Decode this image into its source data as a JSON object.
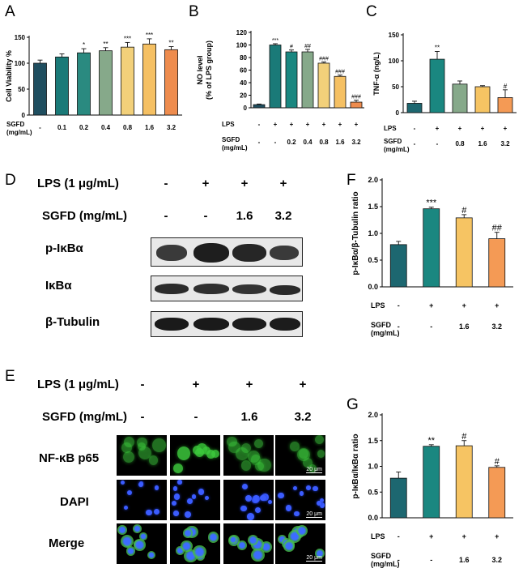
{
  "panels": {
    "A": "A",
    "B": "B",
    "C": "C",
    "D": "D",
    "E": "E",
    "F": "F",
    "G": "G"
  },
  "colors": {
    "c0": "#1f4e5f",
    "c1": "#1a7a78",
    "c2": "#7a9e7e",
    "c3": "#f2d07a",
    "c4": "#f5c063",
    "c5": "#ee8c4e",
    "teal": "#1a8780",
    "dkteal": "#1d6770",
    "yellow": "#f6c463",
    "orange": "#f49a55",
    "sage": "#86a98a"
  },
  "chart_data": [
    {
      "id": "A",
      "type": "bar",
      "ylabel": "Cell Viability %",
      "ylim": [
        0,
        150
      ],
      "yticks": [
        0,
        50,
        100,
        150
      ],
      "row_labels": [
        "SGFD",
        "(mg/mL)"
      ],
      "rows": [
        [
          "-",
          "0.1",
          "0.2",
          "0.4",
          "0.8",
          "1.6",
          "3.2"
        ]
      ],
      "values": [
        100,
        112,
        120,
        124,
        131,
        137,
        126
      ],
      "errors": [
        6,
        6,
        8,
        6,
        9,
        10,
        6
      ],
      "sig": [
        "",
        "",
        "*",
        "**",
        "***",
        "***",
        "**"
      ],
      "bar_colors": [
        "#1f4e5f",
        "#1a7a78",
        "#2a8a80",
        "#86a98a",
        "#f2d07a",
        "#f5c063",
        "#ee8c4e"
      ]
    },
    {
      "id": "B",
      "type": "bar",
      "ylabel_lines": [
        "NO level",
        "(% of LPS group)"
      ],
      "ylim": [
        0,
        120
      ],
      "yticks": [
        0,
        20,
        40,
        60,
        80,
        100,
        120
      ],
      "row_labels": [
        "LPS",
        "SGFD",
        "(mg/mL)"
      ],
      "rows": [
        [
          "-",
          "+",
          "+",
          "+",
          "+",
          "+",
          "+"
        ],
        [
          "-",
          "-",
          "0.2",
          "0.4",
          "0.8",
          "1.6",
          "3.2"
        ]
      ],
      "values": [
        5,
        100,
        89,
        89,
        71,
        50,
        9
      ],
      "errors": [
        1,
        2,
        3,
        4,
        2,
        2,
        3
      ],
      "sig": [
        "",
        "***",
        "#",
        "##",
        "###",
        "###",
        "###"
      ],
      "bar_colors": [
        "#1f4e5f",
        "#1a7a78",
        "#1a8780",
        "#86a98a",
        "#f2d07a",
        "#f5c063",
        "#ee8c4e"
      ]
    },
    {
      "id": "C",
      "type": "bar",
      "ylabel": "TNF-α (ng/L)",
      "ylim": [
        0,
        150
      ],
      "yticks": [
        0,
        50,
        100,
        150
      ],
      "row_labels": [
        "LPS",
        "SGFD",
        "(mg/mL)"
      ],
      "rows": [
        [
          "-",
          "+",
          "+",
          "+",
          "+"
        ],
        [
          "-",
          "-",
          "0.8",
          "1.6",
          "3.2"
        ]
      ],
      "values": [
        18,
        103,
        55,
        50,
        29
      ],
      "errors": [
        4,
        15,
        6,
        2,
        15
      ],
      "sig": [
        "",
        "**",
        "",
        "",
        "#"
      ],
      "bar_colors": [
        "#1d6770",
        "#1a8780",
        "#86a98a",
        "#f6c463",
        "#f49a55"
      ]
    },
    {
      "id": "F",
      "type": "bar",
      "ylabel": "p-IκBα/β-Tubulin ratio",
      "ylim": [
        0,
        2.0
      ],
      "yticks": [
        "0.0",
        "0.5",
        "1.0",
        "1.5",
        "2.0"
      ],
      "row_labels": [
        "LPS",
        "SGFD",
        "(mg/mL)"
      ],
      "rows": [
        [
          "-",
          "+",
          "+",
          "+"
        ],
        [
          "-",
          "-",
          "1.6",
          "3.2"
        ]
      ],
      "values": [
        0.79,
        1.46,
        1.29,
        0.9
      ],
      "errors": [
        0.06,
        0.03,
        0.06,
        0.12
      ],
      "sig": [
        "",
        "***",
        "#",
        "##"
      ],
      "bar_colors": [
        "#1d6770",
        "#1a8780",
        "#f6c463",
        "#f49a55"
      ]
    },
    {
      "id": "G",
      "type": "bar",
      "ylabel": "p-IκBα/IκBα ratio",
      "ylim": [
        0,
        2.0
      ],
      "yticks": [
        "0.0",
        "0.5",
        "1.0",
        "1.5",
        "2.0"
      ],
      "row_labels": [
        "LPS",
        "SGFD",
        "(mg/mL)"
      ],
      "rows": [
        [
          "-",
          "+",
          "+",
          "+"
        ],
        [
          "-",
          "-",
          "1.6",
          "3.2"
        ]
      ],
      "values": [
        0.77,
        1.39,
        1.4,
        0.98
      ],
      "errors": [
        0.12,
        0.03,
        0.1,
        0.03
      ],
      "sig": [
        "",
        "**",
        "#",
        "#"
      ],
      "bar_colors": [
        "#1d6770",
        "#1a8780",
        "#f6c463",
        "#f49a55"
      ]
    }
  ],
  "blot": {
    "lps_label": "LPS (1 μg/mL)",
    "sgfd_label": "SGFD (mg/mL)",
    "lps": [
      "-",
      "+",
      "+",
      "+"
    ],
    "sgfd": [
      "-",
      "-",
      "1.6",
      "3.2"
    ],
    "rows": [
      "p-IκBα",
      "IκBα",
      "β-Tubulin"
    ]
  },
  "micro": {
    "lps_label": "LPS (1 μg/mL)",
    "sgfd_label": "SGFD (mg/mL)",
    "lps": [
      "-",
      "+",
      "+",
      "+"
    ],
    "sgfd": [
      "-",
      "-",
      "1.6",
      "3.2"
    ],
    "rows": [
      "NF-κB p65",
      "DAPI",
      "Merge"
    ],
    "scale": "20 μm"
  }
}
